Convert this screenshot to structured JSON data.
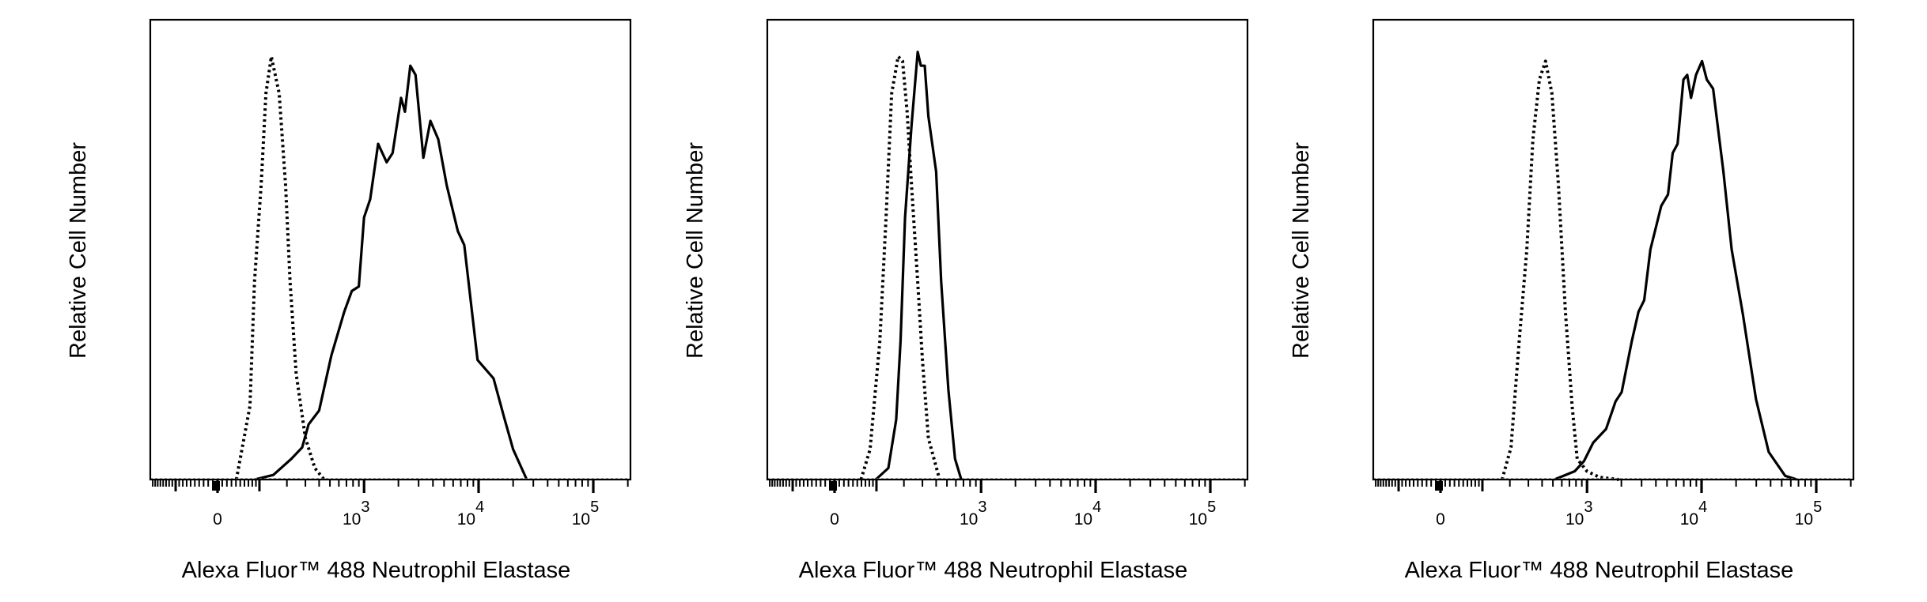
{
  "chart_data": [
    {
      "type": "line",
      "xlabel": "Alexa Fluor™ 488 Neutrophil Elastase",
      "ylabel": "Relative Cell Number",
      "x_scale": "logicle",
      "xlim": [
        -190,
        210000
      ],
      "ylim": [
        0,
        1
      ],
      "grid": false,
      "tick_values": [
        0,
        1000,
        10000,
        100000
      ],
      "tick_labels": [
        {
          "base": "0",
          "exp": ""
        },
        {
          "base": "10",
          "exp": "3"
        },
        {
          "base": "10",
          "exp": "4"
        },
        {
          "base": "10",
          "exp": "5"
        }
      ],
      "series": [
        {
          "style": "dotted",
          "color": "#000000",
          "points": [
            [
              41,
              0
            ],
            [
              74,
              0.16
            ],
            [
              86,
              0.43
            ],
            [
              105,
              0.64
            ],
            [
              120,
              0.84
            ],
            [
              138,
              0.92
            ],
            [
              167,
              0.84
            ],
            [
              194,
              0.64
            ],
            [
              215,
              0.43
            ],
            [
              246,
              0.23
            ],
            [
              300,
              0.09
            ],
            [
              366,
              0.025
            ],
            [
              444,
              0
            ]
          ]
        },
        {
          "style": "solid",
          "color": "#000000",
          "points": [
            [
              86,
              0
            ],
            [
              145,
              0.01
            ],
            [
              221,
              0.045
            ],
            [
              280,
              0.07
            ],
            [
              321,
              0.12
            ],
            [
              400,
              0.15
            ],
            [
              515,
              0.27
            ],
            [
              670,
              0.365
            ],
            [
              780,
              0.41
            ],
            [
              900,
              0.42
            ],
            [
              1000,
              0.57
            ],
            [
              1135,
              0.61
            ],
            [
              1330,
              0.73
            ],
            [
              1580,
              0.69
            ],
            [
              1780,
              0.71
            ],
            [
              2110,
              0.83
            ],
            [
              2280,
              0.8
            ],
            [
              2540,
              0.9
            ],
            [
              2820,
              0.88
            ],
            [
              3300,
              0.7
            ],
            [
              3800,
              0.78
            ],
            [
              4450,
              0.74
            ],
            [
              5270,
              0.64
            ],
            [
              6600,
              0.54
            ],
            [
              7500,
              0.51
            ],
            [
              9800,
              0.26
            ],
            [
              13500,
              0.22
            ],
            [
              16500,
              0.14
            ],
            [
              20000,
              0.066
            ],
            [
              26300,
              0
            ]
          ]
        }
      ]
    },
    {
      "type": "line",
      "xlabel": "Alexa Fluor™ 488 Neutrophil Elastase",
      "ylabel": "Relative Cell Number",
      "x_scale": "logicle",
      "xlim": [
        -190,
        210000
      ],
      "ylim": [
        0,
        1
      ],
      "grid": false,
      "tick_values": [
        0,
        1000,
        10000,
        100000
      ],
      "tick_labels": [
        {
          "base": "0",
          "exp": ""
        },
        {
          "base": "10",
          "exp": "3"
        },
        {
          "base": "10",
          "exp": "4"
        },
        {
          "base": "10",
          "exp": "5"
        }
      ],
      "series": [
        {
          "style": "dotted",
          "color": "#000000",
          "points": [
            [
              59,
              0
            ],
            [
              82,
              0.066
            ],
            [
              110,
              0.3
            ],
            [
              130,
              0.57
            ],
            [
              150,
              0.84
            ],
            [
              175,
              0.92
            ],
            [
              194,
              0.91
            ],
            [
              215,
              0.8
            ],
            [
              237,
              0.64
            ],
            [
              271,
              0.43
            ],
            [
              300,
              0.26
            ],
            [
              340,
              0.09
            ],
            [
              430,
              0
            ]
          ]
        },
        {
          "style": "solid",
          "color": "#000000",
          "points": [
            [
              98,
              0
            ],
            [
              138,
              0.025
            ],
            [
              167,
              0.13
            ],
            [
              185,
              0.3
            ],
            [
              205,
              0.57
            ],
            [
              237,
              0.77
            ],
            [
              271,
              0.93
            ],
            [
              290,
              0.9
            ],
            [
              315,
              0.9
            ],
            [
              340,
              0.79
            ],
            [
              400,
              0.67
            ],
            [
              444,
              0.43
            ],
            [
              515,
              0.195
            ],
            [
              590,
              0.045
            ],
            [
              670,
              0
            ]
          ]
        }
      ]
    },
    {
      "type": "line",
      "xlabel": "Alexa Fluor™ 488 Neutrophil Elastase",
      "ylabel": "Relative Cell Number",
      "x_scale": "logicle",
      "xlim": [
        -190,
        210000
      ],
      "ylim": [
        0,
        1
      ],
      "grid": false,
      "tick_values": [
        0,
        1000,
        10000,
        100000
      ],
      "tick_labels": [
        {
          "base": "0",
          "exp": ""
        },
        {
          "base": "10",
          "exp": "3"
        },
        {
          "base": "10",
          "exp": "4"
        },
        {
          "base": "10",
          "exp": "5"
        }
      ],
      "series": [
        {
          "style": "dotted",
          "color": "#000000",
          "points": [
            [
              167,
              0
            ],
            [
              205,
              0.07
            ],
            [
              246,
              0.3
            ],
            [
              290,
              0.5
            ],
            [
              330,
              0.74
            ],
            [
              378,
              0.87
            ],
            [
              430,
              0.91
            ],
            [
              490,
              0.84
            ],
            [
              560,
              0.64
            ],
            [
              645,
              0.365
            ],
            [
              740,
              0.16
            ],
            [
              820,
              0.045
            ],
            [
              1000,
              0.018
            ],
            [
              1290,
              0.005
            ],
            [
              1900,
              0
            ]
          ]
        },
        {
          "style": "solid",
          "color": "#000000",
          "points": [
            [
              515,
              0
            ],
            [
              780,
              0.018
            ],
            [
              940,
              0.04
            ],
            [
              1135,
              0.08
            ],
            [
              1470,
              0.11
            ],
            [
              1780,
              0.17
            ],
            [
              2010,
              0.19
            ],
            [
              2460,
              0.3
            ],
            [
              2820,
              0.365
            ],
            [
              3160,
              0.39
            ],
            [
              3580,
              0.5
            ],
            [
              4450,
              0.595
            ],
            [
              5100,
              0.62
            ],
            [
              5600,
              0.71
            ],
            [
              6180,
              0.73
            ],
            [
              6950,
              0.87
            ],
            [
              7500,
              0.88
            ],
            [
              8100,
              0.83
            ],
            [
              8950,
              0.88
            ],
            [
              10100,
              0.91
            ],
            [
              11100,
              0.87
            ],
            [
              12600,
              0.85
            ],
            [
              15500,
              0.67
            ],
            [
              18300,
              0.5
            ],
            [
              22900,
              0.36
            ],
            [
              29800,
              0.175
            ],
            [
              38500,
              0.06
            ],
            [
              53600,
              0.008
            ],
            [
              68000,
              0
            ]
          ]
        }
      ]
    }
  ]
}
